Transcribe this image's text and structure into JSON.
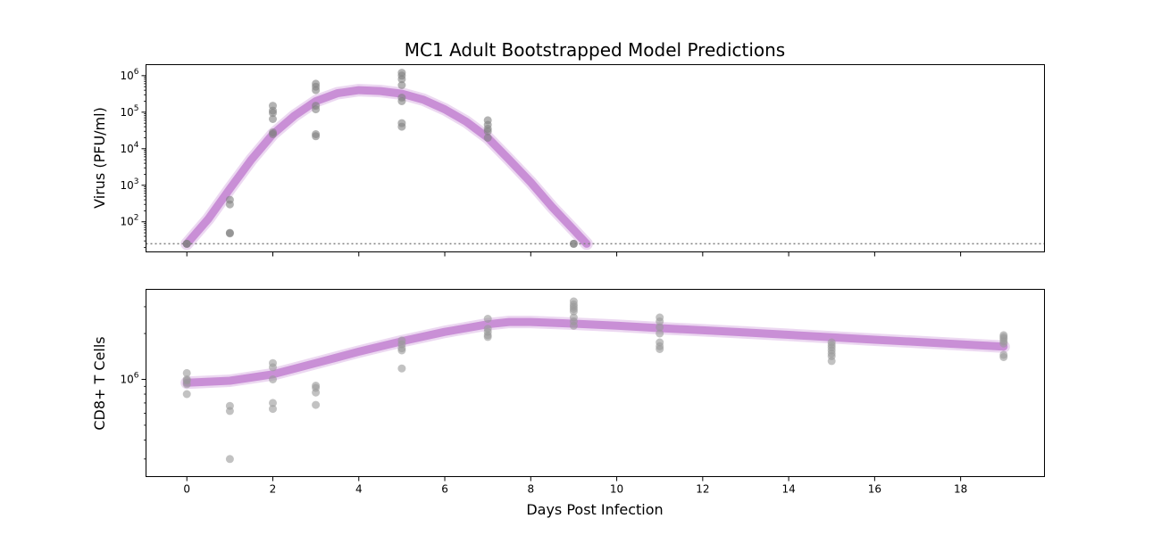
{
  "chart_data": [
    {
      "type": "scatter",
      "title": "MC1 Adult Bootstrapped Model Predictions",
      "ylabel": "Virus (PFU/ml)",
      "xlabel": "",
      "yscale": "log",
      "ylim": [
        15,
        2000000
      ],
      "xlim": [
        -0.95,
        19.95
      ],
      "yticks": [
        {
          "value": 100,
          "base": "10",
          "exp": "2"
        },
        {
          "value": 1000,
          "base": "10",
          "exp": "3"
        },
        {
          "value": 10000,
          "base": "10",
          "exp": "4"
        },
        {
          "value": 100000,
          "base": "10",
          "exp": "5"
        },
        {
          "value": 1000000,
          "base": "10",
          "exp": "6"
        }
      ],
      "detection_limit": 25,
      "fit_color": "#c98fd6",
      "point_color": "#808080",
      "fit_curve": {
        "x": [
          0,
          0.5,
          1,
          1.5,
          2,
          2.5,
          3,
          3.5,
          4,
          4.5,
          5,
          5.5,
          6,
          6.5,
          7,
          7.5,
          8,
          8.5,
          9,
          9.3
        ],
        "y": [
          25,
          120,
          800,
          5000,
          25000,
          80000,
          200000,
          330000,
          400000,
          380000,
          320000,
          220000,
          120000,
          55000,
          20000,
          5000,
          1200,
          250,
          60,
          25
        ]
      },
      "points": [
        {
          "x": 0,
          "y": 25
        },
        {
          "x": 0,
          "y": 25
        },
        {
          "x": 1,
          "y": 400
        },
        {
          "x": 1,
          "y": 300
        },
        {
          "x": 1,
          "y": 50
        },
        {
          "x": 1,
          "y": 48
        },
        {
          "x": 2,
          "y": 150000
        },
        {
          "x": 2,
          "y": 110000
        },
        {
          "x": 2,
          "y": 95000
        },
        {
          "x": 2,
          "y": 65000
        },
        {
          "x": 2,
          "y": 28000
        },
        {
          "x": 2,
          "y": 25000
        },
        {
          "x": 3,
          "y": 600000
        },
        {
          "x": 3,
          "y": 500000
        },
        {
          "x": 3,
          "y": 400000
        },
        {
          "x": 3,
          "y": 150000
        },
        {
          "x": 3,
          "y": 120000
        },
        {
          "x": 3,
          "y": 25000
        },
        {
          "x": 3,
          "y": 22000
        },
        {
          "x": 5,
          "y": 1200000
        },
        {
          "x": 5,
          "y": 1000000
        },
        {
          "x": 5,
          "y": 800000
        },
        {
          "x": 5,
          "y": 550000
        },
        {
          "x": 5,
          "y": 250000
        },
        {
          "x": 5,
          "y": 200000
        },
        {
          "x": 5,
          "y": 50000
        },
        {
          "x": 5,
          "y": 40000
        },
        {
          "x": 7,
          "y": 60000
        },
        {
          "x": 7,
          "y": 45000
        },
        {
          "x": 7,
          "y": 35000
        },
        {
          "x": 7,
          "y": 30000
        },
        {
          "x": 7,
          "y": 20000
        },
        {
          "x": 9,
          "y": 25
        },
        {
          "x": 9,
          "y": 25
        }
      ]
    },
    {
      "type": "scatter",
      "title": "",
      "ylabel": "CD8+ T Cells",
      "xlabel": "Days Post Infection",
      "yscale": "log",
      "ylim": [
        230000,
        3900000
      ],
      "xlim": [
        -0.95,
        19.95
      ],
      "yticks": [
        {
          "value": 1000000,
          "base": "10",
          "exp": "6"
        }
      ],
      "xticks": [
        0,
        2,
        4,
        6,
        8,
        10,
        12,
        14,
        16,
        18
      ],
      "fit_color": "#c98fd6",
      "point_color": "#999999",
      "fit_curve": {
        "x": [
          0,
          1,
          2,
          3,
          4,
          5,
          6,
          7,
          7.5,
          8,
          9,
          10,
          11,
          12,
          13,
          14,
          15,
          16,
          17,
          18,
          19
        ],
        "y": [
          950000,
          980000,
          1080000,
          1280000,
          1520000,
          1780000,
          2050000,
          2300000,
          2380000,
          2380000,
          2320000,
          2250000,
          2170000,
          2100000,
          2030000,
          1960000,
          1890000,
          1820000,
          1760000,
          1700000,
          1640000
        ]
      },
      "points": [
        {
          "x": 0,
          "y": 1100000
        },
        {
          "x": 0,
          "y": 1000000
        },
        {
          "x": 0,
          "y": 980000
        },
        {
          "x": 0,
          "y": 930000
        },
        {
          "x": 0,
          "y": 800000
        },
        {
          "x": 1,
          "y": 670000
        },
        {
          "x": 1,
          "y": 620000
        },
        {
          "x": 1,
          "y": 300000
        },
        {
          "x": 2,
          "y": 1280000
        },
        {
          "x": 2,
          "y": 1200000
        },
        {
          "x": 2,
          "y": 1000000
        },
        {
          "x": 2,
          "y": 700000
        },
        {
          "x": 2,
          "y": 640000
        },
        {
          "x": 3,
          "y": 910000
        },
        {
          "x": 3,
          "y": 880000
        },
        {
          "x": 3,
          "y": 820000
        },
        {
          "x": 3,
          "y": 680000
        },
        {
          "x": 5,
          "y": 1800000
        },
        {
          "x": 5,
          "y": 1700000
        },
        {
          "x": 5,
          "y": 1600000
        },
        {
          "x": 5,
          "y": 1550000
        },
        {
          "x": 5,
          "y": 1180000
        },
        {
          "x": 7,
          "y": 2500000
        },
        {
          "x": 7,
          "y": 2150000
        },
        {
          "x": 7,
          "y": 2050000
        },
        {
          "x": 7,
          "y": 1950000
        },
        {
          "x": 7,
          "y": 1900000
        },
        {
          "x": 9,
          "y": 3250000
        },
        {
          "x": 9,
          "y": 3100000
        },
        {
          "x": 9,
          "y": 3000000
        },
        {
          "x": 9,
          "y": 2900000
        },
        {
          "x": 9,
          "y": 2800000
        },
        {
          "x": 9,
          "y": 2550000
        },
        {
          "x": 9,
          "y": 2400000
        },
        {
          "x": 9,
          "y": 2250000
        },
        {
          "x": 11,
          "y": 2550000
        },
        {
          "x": 11,
          "y": 2400000
        },
        {
          "x": 11,
          "y": 2200000
        },
        {
          "x": 11,
          "y": 2000000
        },
        {
          "x": 11,
          "y": 1750000
        },
        {
          "x": 11,
          "y": 1650000
        },
        {
          "x": 11,
          "y": 1580000
        },
        {
          "x": 15,
          "y": 1750000
        },
        {
          "x": 15,
          "y": 1680000
        },
        {
          "x": 15,
          "y": 1620000
        },
        {
          "x": 15,
          "y": 1550000
        },
        {
          "x": 15,
          "y": 1480000
        },
        {
          "x": 15,
          "y": 1420000
        },
        {
          "x": 15,
          "y": 1320000
        },
        {
          "x": 19,
          "y": 1950000
        },
        {
          "x": 19,
          "y": 1900000
        },
        {
          "x": 19,
          "y": 1850000
        },
        {
          "x": 19,
          "y": 1780000
        },
        {
          "x": 19,
          "y": 1720000
        },
        {
          "x": 19,
          "y": 1450000
        },
        {
          "x": 19,
          "y": 1400000
        }
      ]
    }
  ]
}
